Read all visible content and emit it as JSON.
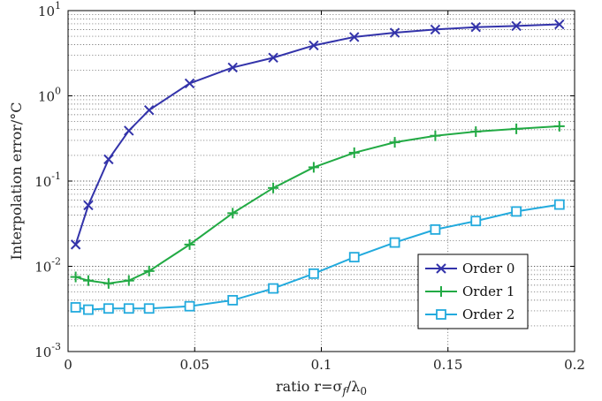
{
  "chart_data": {
    "type": "line",
    "title": "",
    "xlabel": "ratio r=σ",
    "xlabel_sub1": "f",
    "xlabel_mid": "/λ",
    "xlabel_sub2": "0",
    "ylabel": "Interpolation error/°C",
    "xlim": [
      0,
      0.2
    ],
    "ylim_log10": [
      -3,
      1
    ],
    "yscale": "log",
    "grid": "dotted, horizontal minor log gridlines",
    "legend_position": "bottom-right",
    "x_ticks": [
      {
        "value": 0,
        "label": "0"
      },
      {
        "value": 0.05,
        "label": "0.05"
      },
      {
        "value": 0.1,
        "label": "0.1"
      },
      {
        "value": 0.15,
        "label": "0.15"
      },
      {
        "value": 0.2,
        "label": "0.2"
      }
    ],
    "y_ticks": [
      {
        "exp": -3,
        "base": "10",
        "sup": "-3"
      },
      {
        "exp": -2,
        "base": "10",
        "sup": "-2"
      },
      {
        "exp": -1,
        "base": "10",
        "sup": "-1"
      },
      {
        "exp": 0,
        "base": "10",
        "sup": "0"
      },
      {
        "exp": 1,
        "base": "10",
        "sup": "1"
      }
    ],
    "series": [
      {
        "name": "Order 0",
        "color": "#3333aa",
        "marker": "x",
        "x": [
          0.003,
          0.008,
          0.016,
          0.024,
          0.032,
          0.048,
          0.065,
          0.081,
          0.097,
          0.113,
          0.129,
          0.145,
          0.161,
          0.177,
          0.194
        ],
        "y": [
          0.018,
          0.052,
          0.18,
          0.39,
          0.68,
          1.4,
          2.15,
          2.8,
          3.9,
          4.9,
          5.5,
          6.0,
          6.4,
          6.6,
          6.9
        ]
      },
      {
        "name": "Order 1",
        "color": "#22aa44",
        "marker": "+",
        "x": [
          0.003,
          0.008,
          0.016,
          0.024,
          0.032,
          0.048,
          0.065,
          0.081,
          0.097,
          0.113,
          0.129,
          0.145,
          0.161,
          0.177,
          0.194
        ],
        "y": [
          0.0075,
          0.0068,
          0.0063,
          0.0068,
          0.0088,
          0.018,
          0.042,
          0.083,
          0.145,
          0.215,
          0.285,
          0.34,
          0.38,
          0.41,
          0.44
        ]
      },
      {
        "name": "Order 2",
        "color": "#22aadd",
        "marker": "square",
        "x": [
          0.003,
          0.008,
          0.016,
          0.024,
          0.032,
          0.048,
          0.065,
          0.081,
          0.097,
          0.113,
          0.129,
          0.145,
          0.161,
          0.177,
          0.194
        ],
        "y": [
          0.0033,
          0.0031,
          0.0032,
          0.0032,
          0.0032,
          0.0034,
          0.004,
          0.0055,
          0.0082,
          0.0128,
          0.019,
          0.027,
          0.034,
          0.044,
          0.053
        ]
      }
    ]
  }
}
